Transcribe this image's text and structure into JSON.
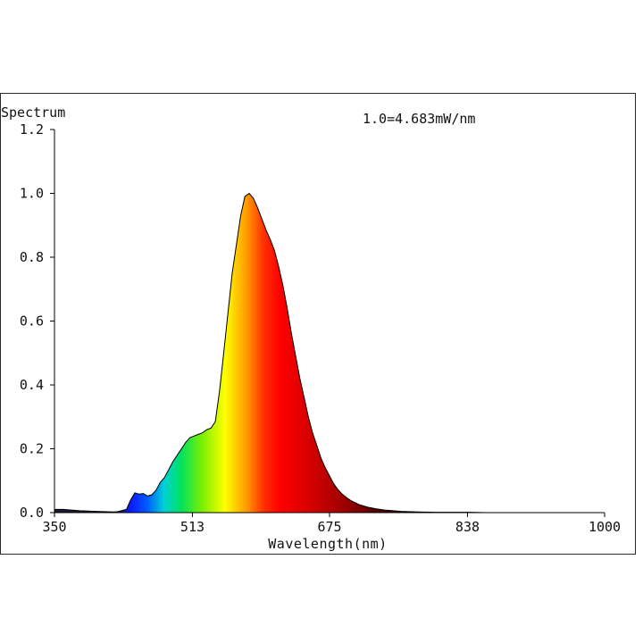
{
  "chart_data": {
    "type": "area",
    "title": "Spectrum",
    "annotation": "1.0=4.683mW/nm",
    "xlabel": "Wavelength(nm)",
    "ylabel": "",
    "xlim": [
      350,
      1000
    ],
    "ylim": [
      0,
      1.2
    ],
    "x_ticks": [
      350,
      513,
      675,
      838,
      1000
    ],
    "x_tick_labels": [
      "350",
      "513",
      "675",
      "838",
      "1000"
    ],
    "y_ticks": [
      0,
      0.2,
      0.4,
      0.6,
      0.8,
      1.0,
      1.2
    ],
    "y_tick_labels": [
      "0.0",
      "0.2",
      "0.4",
      "0.6",
      "0.8",
      "1.0",
      "1.2"
    ],
    "fill": "visible-spectrum gradient",
    "grid": false,
    "series": [
      {
        "x": [
          350,
          360,
          380,
          400,
          420,
          425,
          435,
          440,
          445,
          450,
          455,
          460,
          465,
          470,
          475,
          480,
          490,
          500,
          505,
          510,
          515,
          520,
          525,
          530,
          535,
          540,
          545,
          550,
          560,
          570,
          575,
          580,
          585,
          590,
          595,
          600,
          605,
          610,
          615,
          620,
          625,
          630,
          635,
          640,
          645,
          650,
          655,
          660,
          665,
          670,
          675,
          680,
          685,
          690,
          695,
          700,
          710,
          720,
          730,
          740,
          750,
          760,
          780,
          800,
          820,
          840,
          860,
          900,
          950,
          1000
        ],
        "y": [
          0.01,
          0.01,
          0.006,
          0.004,
          0.002,
          0.003,
          0.01,
          0.04,
          0.062,
          0.058,
          0.06,
          0.052,
          0.056,
          0.07,
          0.095,
          0.11,
          0.16,
          0.2,
          0.22,
          0.235,
          0.24,
          0.245,
          0.25,
          0.26,
          0.265,
          0.285,
          0.38,
          0.5,
          0.75,
          0.93,
          0.99,
          1.0,
          0.985,
          0.955,
          0.92,
          0.885,
          0.855,
          0.82,
          0.77,
          0.71,
          0.64,
          0.56,
          0.49,
          0.42,
          0.36,
          0.3,
          0.25,
          0.21,
          0.17,
          0.14,
          0.115,
          0.09,
          0.072,
          0.058,
          0.047,
          0.038,
          0.025,
          0.017,
          0.012,
          0.008,
          0.006,
          0.004,
          0.002,
          0.001,
          0.001,
          0.001,
          0.0,
          0.0,
          0.0,
          0.0
        ]
      }
    ]
  }
}
